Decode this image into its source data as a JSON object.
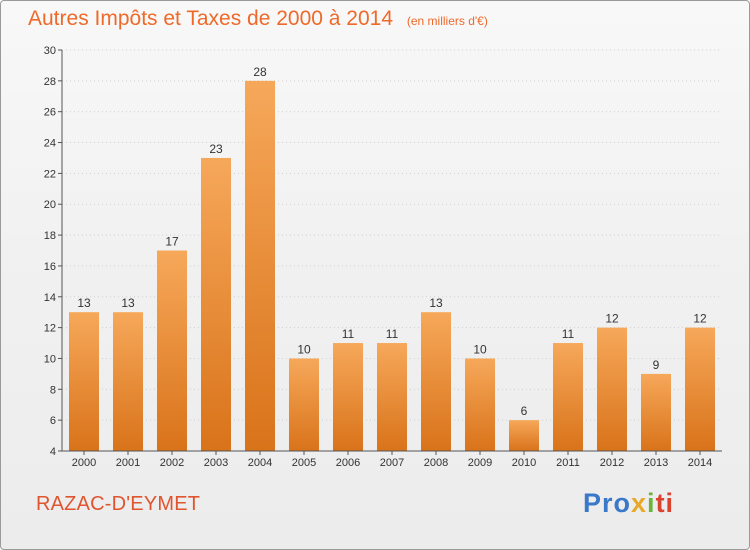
{
  "header": {
    "title": "Autres Impôts et Taxes de 2000 à 2014",
    "unit": "(en milliers d'€)"
  },
  "footer": {
    "commune": "RAZAC-D'EYMET",
    "logo": [
      "Pro",
      "x",
      "i",
      "ti"
    ]
  },
  "colors": {
    "bar_top": "#f6a85a",
    "bar_bottom": "#d9731a",
    "title": "#ee6a2a",
    "grid": "#cfcfcf"
  },
  "chart_data": {
    "type": "bar",
    "title": "Autres Impôts et Taxes de 2000 à 2014",
    "subtitle": "(en milliers d'€)",
    "categories": [
      "2000",
      "2001",
      "2002",
      "2003",
      "2004",
      "2005",
      "2006",
      "2007",
      "2008",
      "2009",
      "2010",
      "2011",
      "2012",
      "2013",
      "2014"
    ],
    "values": [
      13,
      13,
      17,
      23,
      28,
      10,
      11,
      11,
      13,
      10,
      6,
      11,
      12,
      9,
      12
    ],
    "ylim": [
      4,
      30
    ],
    "yticks": [
      4,
      6,
      8,
      10,
      12,
      14,
      16,
      18,
      20,
      22,
      24,
      26,
      28,
      30
    ],
    "grid": true,
    "data_labels": true
  }
}
